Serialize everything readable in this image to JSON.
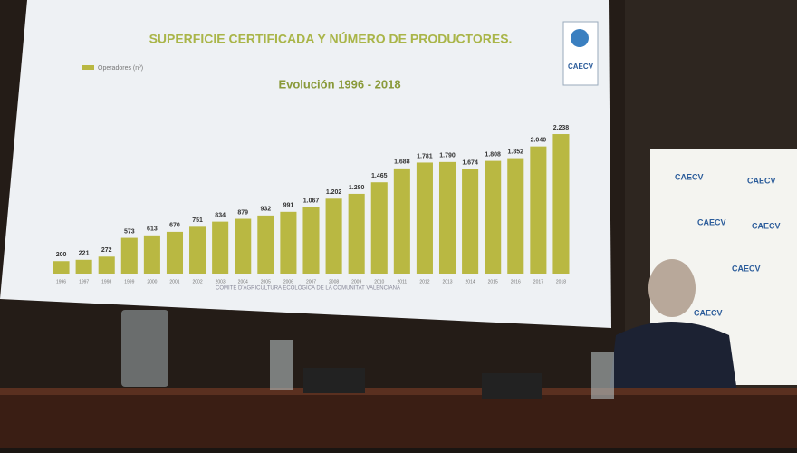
{
  "chart_data": {
    "type": "bar",
    "title": "SUPERFICIE CERTIFICADA Y NÚMERO DE PRODUCTORES.",
    "subtitle": "Evolución 1996 - 2018",
    "categories": [
      "1996",
      "1997",
      "1998",
      "1999",
      "2000",
      "2001",
      "2002",
      "2003",
      "2004",
      "2005",
      "2006",
      "2007",
      "2008",
      "2009",
      "2010",
      "2011",
      "2012",
      "2013",
      "2014",
      "2015",
      "2016",
      "2017",
      "2018"
    ],
    "series": [
      {
        "name": "Operadores (nº)",
        "color": "#b9b842",
        "values": [
          200,
          221,
          272,
          573,
          613,
          670,
          751,
          834,
          879,
          932,
          991,
          1067,
          1202,
          1280,
          1465,
          1688,
          1781,
          1790,
          1674,
          1808,
          1852,
          2040,
          2238
        ],
        "value_labels": [
          "200",
          "221",
          "272",
          "573",
          "613",
          "670",
          "751",
          "834",
          "879",
          "932",
          "991",
          "1.067",
          "1.202",
          "1.280",
          "1.465",
          "1.688",
          "1.781",
          "1.790",
          "1.674",
          "1.808",
          "1.852",
          "2.040",
          "2.238"
        ]
      }
    ],
    "ylim": [
      0,
      2500
    ]
  },
  "logo": "CAECV",
  "footer": "COMITÈ D'AGRICULTURA ECOLÒGICA DE LA COMUNITAT VALENCIANA"
}
